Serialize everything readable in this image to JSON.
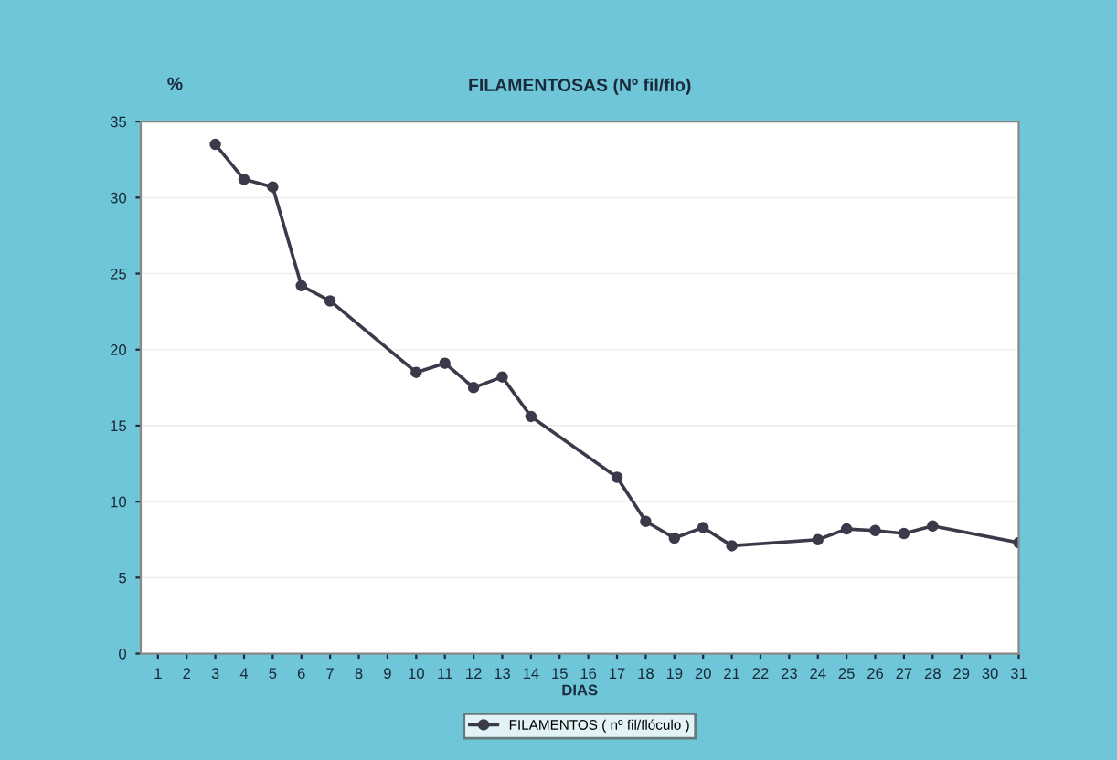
{
  "chart_data": {
    "type": "line",
    "title": "FILAMENTOSAS (Nº fil/flo)",
    "xlabel": "DIAS",
    "ylabel": "%",
    "x": [
      3,
      4,
      5,
      6,
      7,
      10,
      11,
      12,
      13,
      14,
      17,
      18,
      19,
      20,
      21,
      24,
      25,
      26,
      27,
      28,
      31
    ],
    "series": [
      {
        "name": "FILAMENTOS ( nº fil/flóculo )",
        "color": "#3a3a4a",
        "values": [
          33.5,
          31.2,
          30.7,
          24.2,
          23.2,
          18.5,
          19.1,
          17.5,
          18.2,
          15.6,
          11.6,
          8.7,
          7.6,
          8.3,
          7.1,
          7.5,
          8.2,
          8.1,
          7.9,
          8.4,
          7.3
        ]
      }
    ],
    "xlim": [
      0.4,
      31
    ],
    "xticks": [
      1,
      2,
      3,
      4,
      5,
      6,
      7,
      8,
      9,
      10,
      11,
      12,
      13,
      14,
      15,
      16,
      17,
      18,
      19,
      20,
      21,
      22,
      23,
      24,
      25,
      26,
      27,
      28,
      29,
      30,
      31
    ],
    "ylim": [
      0,
      35
    ],
    "yticks": [
      0,
      5,
      10,
      15,
      20,
      25,
      30,
      35
    ],
    "grid": "y",
    "legend": "bottom",
    "marker": "circle",
    "line_style": "solid"
  }
}
